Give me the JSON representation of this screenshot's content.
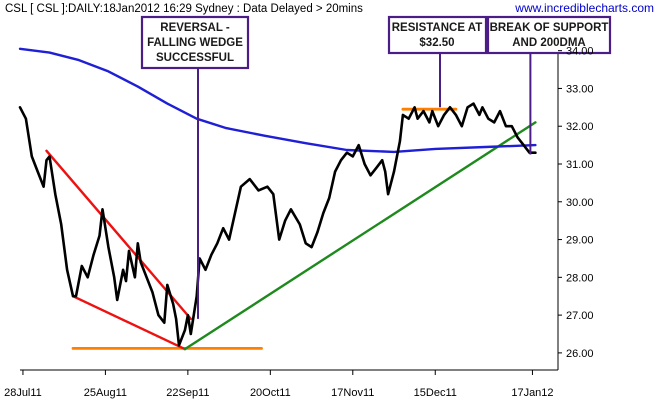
{
  "header": {
    "title": "CSL [ CSL ]:DAILY:18Jan2012 16:29 Sydney : Data Delayed > 20mins",
    "watermark": "www.incrediblecharts.com"
  },
  "annotations": {
    "reversal": [
      "REVERSAL -",
      "FALLING WEDGE",
      "SUCCESSFUL"
    ],
    "resistance": [
      "RESISTANCE AT",
      "$32.50"
    ],
    "breakdown": [
      "BREAK OF SUPPORT",
      "AND 200DMA"
    ]
  },
  "colors": {
    "price": "#000000",
    "ma200": "#1f1fd6",
    "wedge": "#ee1111",
    "support": "#1e8a1e",
    "levels": "#ff8000",
    "annotation_border": "#4b1e87"
  },
  "chart_data": {
    "type": "line",
    "x_type": "date",
    "x_ticks": [
      "28Jul11",
      "25Aug11",
      "22Sep11",
      "20Oct11",
      "17Nov11",
      "15Dec11",
      "17Jan12"
    ],
    "x_range": [
      "2011-07-27",
      "2012-01-25"
    ],
    "ylim": [
      25.6,
      34.6
    ],
    "y_ticks": [
      "26.00",
      "27.00",
      "28.00",
      "29.00",
      "30.00",
      "31.00",
      "32.00",
      "33.00",
      "34.00"
    ],
    "y_axis_side": "right",
    "grid": false,
    "series": [
      {
        "role": "price",
        "color": "#000000",
        "points": [
          [
            "2011-07-27",
            32.5
          ],
          [
            "2011-07-29",
            32.2
          ],
          [
            "2011-07-31",
            31.2
          ],
          [
            "2011-08-02",
            30.8
          ],
          [
            "2011-08-04",
            30.4
          ],
          [
            "2011-08-05",
            31.1
          ],
          [
            "2011-08-06",
            31.2
          ],
          [
            "2011-08-08",
            30.2
          ],
          [
            "2011-08-10",
            29.4
          ],
          [
            "2011-08-12",
            28.2
          ],
          [
            "2011-08-14",
            27.5
          ],
          [
            "2011-08-15",
            27.5
          ],
          [
            "2011-08-17",
            28.3
          ],
          [
            "2011-08-19",
            28.0
          ],
          [
            "2011-08-21",
            28.6
          ],
          [
            "2011-08-23",
            29.1
          ],
          [
            "2011-08-24",
            29.8
          ],
          [
            "2011-08-26",
            28.8
          ],
          [
            "2011-08-28",
            28.0
          ],
          [
            "2011-08-29",
            27.4
          ],
          [
            "2011-08-31",
            28.2
          ],
          [
            "2011-09-01",
            27.9
          ],
          [
            "2011-09-02",
            28.7
          ],
          [
            "2011-09-04",
            28.0
          ],
          [
            "2011-09-05",
            28.9
          ],
          [
            "2011-09-06",
            28.4
          ],
          [
            "2011-09-08",
            28.0
          ],
          [
            "2011-09-10",
            27.6
          ],
          [
            "2011-09-12",
            27.0
          ],
          [
            "2011-09-14",
            26.8
          ],
          [
            "2011-09-15",
            27.8
          ],
          [
            "2011-09-17",
            27.3
          ],
          [
            "2011-09-18",
            26.9
          ],
          [
            "2011-09-19",
            26.2
          ],
          [
            "2011-09-21",
            26.6
          ],
          [
            "2011-09-22",
            27.0
          ],
          [
            "2011-09-23",
            26.5
          ],
          [
            "2011-09-25",
            27.5
          ],
          [
            "2011-09-26",
            28.5
          ],
          [
            "2011-09-28",
            28.2
          ],
          [
            "2011-09-30",
            28.6
          ],
          [
            "2011-10-02",
            28.9
          ],
          [
            "2011-10-04",
            29.3
          ],
          [
            "2011-10-06",
            29.0
          ],
          [
            "2011-10-08",
            29.7
          ],
          [
            "2011-10-10",
            30.4
          ],
          [
            "2011-10-13",
            30.6
          ],
          [
            "2011-10-16",
            30.3
          ],
          [
            "2011-10-19",
            30.4
          ],
          [
            "2011-10-21",
            30.2
          ],
          [
            "2011-10-23",
            29.0
          ],
          [
            "2011-10-25",
            29.5
          ],
          [
            "2011-10-27",
            29.8
          ],
          [
            "2011-10-30",
            29.4
          ],
          [
            "2011-11-01",
            28.9
          ],
          [
            "2011-11-03",
            28.8
          ],
          [
            "2011-11-05",
            29.2
          ],
          [
            "2011-11-07",
            29.7
          ],
          [
            "2011-11-09",
            30.1
          ],
          [
            "2011-11-11",
            30.8
          ],
          [
            "2011-11-13",
            31.1
          ],
          [
            "2011-11-15",
            31.3
          ],
          [
            "2011-11-17",
            31.2
          ],
          [
            "2011-11-19",
            31.5
          ],
          [
            "2011-11-21",
            31.0
          ],
          [
            "2011-11-23",
            30.7
          ],
          [
            "2011-11-25",
            30.9
          ],
          [
            "2011-11-27",
            31.1
          ],
          [
            "2011-11-28",
            30.8
          ],
          [
            "2011-11-29",
            30.2
          ],
          [
            "2011-12-01",
            30.8
          ],
          [
            "2011-12-03",
            31.6
          ],
          [
            "2011-12-04",
            32.3
          ],
          [
            "2011-12-06",
            32.2
          ],
          [
            "2011-12-08",
            32.5
          ],
          [
            "2011-12-09",
            32.2
          ],
          [
            "2011-12-11",
            32.4
          ],
          [
            "2011-12-13",
            32.1
          ],
          [
            "2011-12-14",
            32.4
          ],
          [
            "2011-12-16",
            32.0
          ],
          [
            "2011-12-18",
            32.3
          ],
          [
            "2011-12-20",
            32.5
          ],
          [
            "2011-12-22",
            32.3
          ],
          [
            "2011-12-24",
            32.0
          ],
          [
            "2011-12-26",
            32.5
          ],
          [
            "2011-12-28",
            32.6
          ],
          [
            "2011-12-30",
            32.3
          ],
          [
            "2011-12-31",
            32.5
          ],
          [
            "2012-01-02",
            32.2
          ],
          [
            "2012-01-04",
            32.1
          ],
          [
            "2012-01-06",
            32.4
          ],
          [
            "2012-01-08",
            32.0
          ],
          [
            "2012-01-10",
            32.0
          ],
          [
            "2012-01-12",
            31.7
          ],
          [
            "2012-01-14",
            31.5
          ],
          [
            "2012-01-16",
            31.3
          ],
          [
            "2012-01-18",
            31.3
          ]
        ]
      },
      {
        "role": "200-day moving average",
        "color": "#1f1fd6",
        "points": [
          [
            "2011-07-27",
            34.05
          ],
          [
            "2011-08-06",
            33.95
          ],
          [
            "2011-08-16",
            33.75
          ],
          [
            "2011-08-26",
            33.45
          ],
          [
            "2011-09-05",
            33.05
          ],
          [
            "2011-09-15",
            32.6
          ],
          [
            "2011-09-25",
            32.2
          ],
          [
            "2011-10-05",
            31.95
          ],
          [
            "2011-10-18",
            31.75
          ],
          [
            "2011-11-01",
            31.55
          ],
          [
            "2011-11-15",
            31.37
          ],
          [
            "2011-12-01",
            31.32
          ],
          [
            "2011-12-15",
            31.4
          ],
          [
            "2012-01-01",
            31.45
          ],
          [
            "2012-01-18",
            31.5
          ]
        ]
      }
    ],
    "trendlines": [
      {
        "role": "wedge-upper",
        "color": "#ee1111",
        "from": [
          "2011-08-05",
          31.35
        ],
        "to": [
          "2011-09-23",
          26.9
        ]
      },
      {
        "role": "wedge-lower",
        "color": "#ee1111",
        "from": [
          "2011-08-14",
          27.5
        ],
        "to": [
          "2011-09-21",
          26.1
        ]
      },
      {
        "role": "support",
        "color": "#1e8a1e",
        "from": [
          "2011-09-21",
          26.1
        ],
        "to": [
          "2012-01-18",
          32.1
        ]
      },
      {
        "role": "wedge-low-level",
        "color": "#ff8000",
        "from": [
          "2011-08-14",
          26.12
        ],
        "to": [
          "2011-10-17",
          26.12
        ]
      },
      {
        "role": "resistance-level",
        "color": "#ff8000",
        "from": [
          "2011-12-04",
          32.45
        ],
        "to": [
          "2011-12-22",
          32.45
        ]
      }
    ]
  }
}
